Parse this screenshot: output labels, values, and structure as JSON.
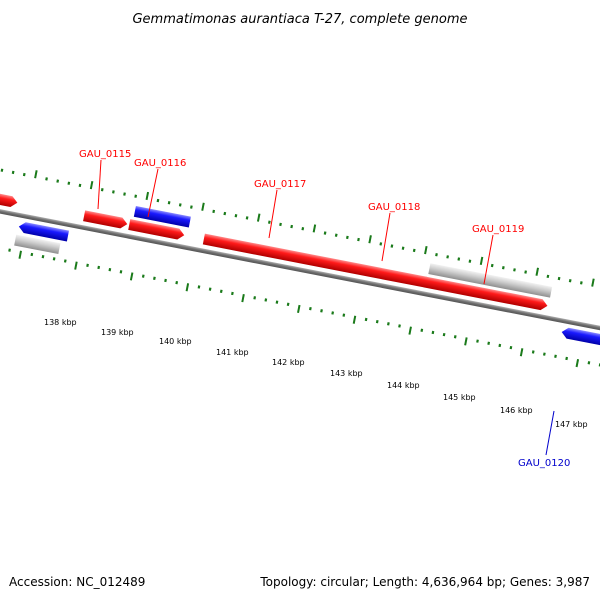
{
  "title": "Gemmatimonas aurantiaca T-27, complete genome",
  "footer": {
    "accession": "Accession: NC_012489",
    "summary": "Topology: circular; Length: 4,636,964 bp; Genes: 3,987"
  },
  "colors": {
    "forward": "#ff0000",
    "reverse": "#0000ff",
    "other": "#c8c8c8",
    "ticks": "#1a7a1a",
    "backbone": "#7a7a7a"
  },
  "ruler": {
    "unit": "kbp",
    "labels": [
      "138 kbp",
      "139 kbp",
      "140 kbp",
      "141 kbp",
      "142 kbp",
      "143 kbp",
      "144 kbp",
      "145 kbp",
      "146 kbp",
      "147 kbp"
    ]
  },
  "genes": [
    {
      "name": "GAU_0115",
      "strand": "forward",
      "color": "red"
    },
    {
      "name": "GAU_0116",
      "strand": "forward",
      "color": "red"
    },
    {
      "name": "GAU_0117",
      "strand": "forward",
      "color": "red"
    },
    {
      "name": "GAU_0118",
      "strand": "forward",
      "color": "red"
    },
    {
      "name": "GAU_0119",
      "strand": "forward",
      "color": "red"
    },
    {
      "name": "GAU_0120",
      "strand": "reverse",
      "color": "blue"
    }
  ]
}
